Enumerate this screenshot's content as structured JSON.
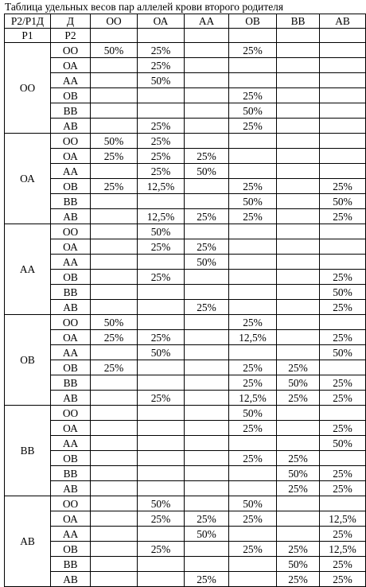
{
  "title": "Таблица удельных весов пар аллелей крови второго родителя",
  "header": {
    "corner": "Р2/Р1Д",
    "sub_p1": "Р1",
    "sub_p2": "Р2",
    "columns": [
      "ОО",
      "ОА",
      "АА",
      "ОВ",
      "ВВ",
      "АВ"
    ]
  },
  "row_labels": [
    "ОО",
    "ОА",
    "АА",
    "ОВ",
    "ВВ",
    "АВ"
  ],
  "groups": [
    {
      "p1": "ОО",
      "cells": [
        [
          "50%",
          "25%",
          "",
          "25%",
          "",
          ""
        ],
        [
          "",
          "25%",
          "",
          "",
          "",
          ""
        ],
        [
          "",
          "50%",
          "",
          "",
          "",
          ""
        ],
        [
          "",
          "",
          "",
          "25%",
          "",
          ""
        ],
        [
          "",
          "",
          "",
          "50%",
          "",
          ""
        ],
        [
          "",
          "25%",
          "",
          "25%",
          "",
          ""
        ]
      ]
    },
    {
      "p1": "ОА",
      "cells": [
        [
          "50%",
          "25%",
          "",
          "",
          "",
          ""
        ],
        [
          "25%",
          "25%",
          "25%",
          "",
          "",
          ""
        ],
        [
          "",
          "25%",
          "50%",
          "",
          "",
          ""
        ],
        [
          "25%",
          "12,5%",
          "",
          "25%",
          "",
          "25%"
        ],
        [
          "",
          "",
          "",
          "50%",
          "",
          "50%"
        ],
        [
          "",
          "12,5%",
          "25%",
          "25%",
          "",
          "25%"
        ]
      ]
    },
    {
      "p1": "АА",
      "cells": [
        [
          "",
          "50%",
          "",
          "",
          "",
          ""
        ],
        [
          "",
          "25%",
          "25%",
          "",
          "",
          ""
        ],
        [
          "",
          "",
          "50%",
          "",
          "",
          ""
        ],
        [
          "",
          "25%",
          "",
          "",
          "",
          "25%"
        ],
        [
          "",
          "",
          "",
          "",
          "",
          "50%"
        ],
        [
          "",
          "",
          "25%",
          "",
          "",
          "25%"
        ]
      ]
    },
    {
      "p1": "ОВ",
      "cells": [
        [
          "50%",
          "",
          "",
          "25%",
          "",
          ""
        ],
        [
          "25%",
          "25%",
          "",
          "12,5%",
          "",
          "25%"
        ],
        [
          "",
          "50%",
          "",
          "",
          "",
          "50%"
        ],
        [
          "25%",
          "",
          "",
          "25%",
          "25%",
          ""
        ],
        [
          "",
          "",
          "",
          "25%",
          "50%",
          "25%"
        ],
        [
          "",
          "25%",
          "",
          "12,5%",
          "25%",
          "25%"
        ]
      ]
    },
    {
      "p1": "ВВ",
      "cells": [
        [
          "",
          "",
          "",
          "50%",
          "",
          ""
        ],
        [
          "",
          "",
          "",
          "25%",
          "",
          "25%"
        ],
        [
          "",
          "",
          "",
          "",
          "",
          "50%"
        ],
        [
          "",
          "",
          "",
          "25%",
          "25%",
          ""
        ],
        [
          "",
          "",
          "",
          "",
          "50%",
          "25%"
        ],
        [
          "",
          "",
          "",
          "",
          "25%",
          "25%"
        ]
      ]
    },
    {
      "p1": "АВ",
      "cells": [
        [
          "",
          "50%",
          "",
          "50%",
          "",
          ""
        ],
        [
          "",
          "25%",
          "25%",
          "25%",
          "",
          "12,5%"
        ],
        [
          "",
          "",
          "50%",
          "",
          "",
          "25%"
        ],
        [
          "",
          "25%",
          "",
          "25%",
          "25%",
          "12,5%"
        ],
        [
          "",
          "",
          "",
          "",
          "50%",
          "25%"
        ],
        [
          "",
          "",
          "25%",
          "",
          "25%",
          "25%"
        ]
      ]
    }
  ]
}
